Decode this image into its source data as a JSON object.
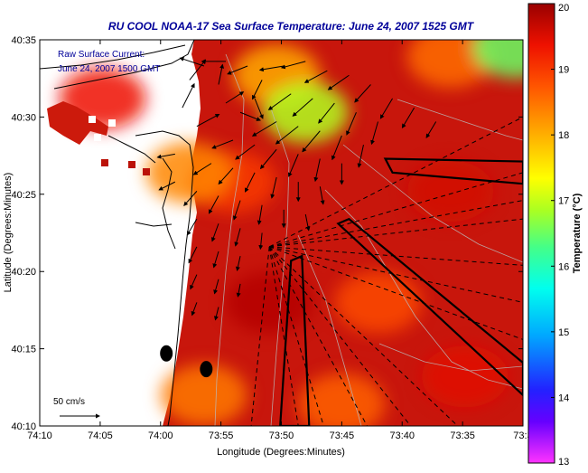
{
  "chart_data": {
    "type": "heatmap",
    "title": "RU COOL  NOAA-17  Sea Surface Temperature:  June 24, 2007 1525 GMT",
    "xlabel": "Longitude (Degrees:Minutes)",
    "ylabel": "Latitude (Degrees:Minutes)",
    "xlim": [
      -74.1667,
      -73.5
    ],
    "ylim": [
      40.1667,
      40.5833
    ],
    "x_ticks": [
      {
        "value": -74.1667,
        "label": "74:10"
      },
      {
        "value": -74.0833,
        "label": "74:05"
      },
      {
        "value": -74.0,
        "label": "74:00"
      },
      {
        "value": -73.9167,
        "label": "73:55"
      },
      {
        "value": -73.8333,
        "label": "73:50"
      },
      {
        "value": -73.75,
        "label": "73:45"
      },
      {
        "value": -73.6667,
        "label": "73:40"
      },
      {
        "value": -73.5833,
        "label": "73:35"
      },
      {
        "value": -73.5,
        "label": "73:3"
      }
    ],
    "y_ticks": [
      {
        "value": 40.1667,
        "label": "40:10"
      },
      {
        "value": 40.25,
        "label": "40:15"
      },
      {
        "value": 40.3333,
        "label": "40:20"
      },
      {
        "value": 40.4167,
        "label": "40:25"
      },
      {
        "value": 40.5,
        "label": "40:30"
      },
      {
        "value": 40.5833,
        "label": "40:35"
      }
    ],
    "colorbar": {
      "label": "Temperature (°C)",
      "range": [
        13,
        20
      ],
      "ticks": [
        13,
        14,
        15,
        16,
        17,
        18,
        19,
        20
      ],
      "colors": [
        "#ff33ff",
        "#3333ff",
        "#00ffff",
        "#66ff99",
        "#ffff00",
        "#ff9900",
        "#ff2200",
        "#990000"
      ]
    },
    "annotations": {
      "current_label_1": "Raw Surface Current:",
      "current_label_2": "June 24, 2007 1500 GMT",
      "scale_label": "50 cm/s",
      "scale_speed_cms": 50
    },
    "sst_zones": [
      {
        "lon": -74.08,
        "lat": 40.52,
        "temp": 19.4
      },
      {
        "lon": -73.84,
        "lat": 40.545,
        "temp": 18.0
      },
      {
        "lon": -73.8,
        "lat": 40.505,
        "temp": 16.9
      },
      {
        "lon": -73.6,
        "lat": 40.565,
        "temp": 18.5
      },
      {
        "lon": -73.51,
        "lat": 40.575,
        "temp": 16.5
      },
      {
        "lon": -73.9,
        "lat": 40.43,
        "temp": 19.0
      },
      {
        "lon": -73.96,
        "lat": 40.44,
        "temp": 18.3
      },
      {
        "lon": -73.6,
        "lat": 40.42,
        "temp": 19.6
      },
      {
        "lon": -73.7,
        "lat": 40.3,
        "temp": 18.8
      },
      {
        "lon": -73.85,
        "lat": 40.3,
        "temp": 19.8
      },
      {
        "lon": -73.94,
        "lat": 40.2,
        "temp": 18.4
      },
      {
        "lon": -73.75,
        "lat": 40.19,
        "temp": 18.6
      },
      {
        "lon": -73.58,
        "lat": 40.22,
        "temp": 19.5
      }
    ],
    "radial_lines": {
      "origin": {
        "lon": -73.85,
        "lat": 40.36
      },
      "ends": [
        {
          "lon": -73.5,
          "lat": 40.5
        },
        {
          "lon": -73.5,
          "lat": 40.44
        },
        {
          "lon": -73.5,
          "lat": 40.41
        },
        {
          "lon": -73.5,
          "lat": 40.39
        },
        {
          "lon": -73.5,
          "lat": 40.34
        },
        {
          "lon": -73.5,
          "lat": 40.3
        },
        {
          "lon": -73.5,
          "lat": 40.26
        },
        {
          "lon": -73.59,
          "lat": 40.1667
        },
        {
          "lon": -73.655,
          "lat": 40.1667
        },
        {
          "lon": -73.715,
          "lat": 40.1667
        },
        {
          "lon": -73.775,
          "lat": 40.1667
        },
        {
          "lon": -73.81,
          "lat": 40.1667
        },
        {
          "lon": -73.875,
          "lat": 40.1667
        }
      ]
    },
    "sampling_boxes": [
      [
        [
          -73.835,
          40.1667
        ],
        [
          -73.82,
          40.345
        ],
        [
          -73.805,
          40.35
        ],
        [
          -73.795,
          40.1667
        ]
      ],
      [
        [
          -73.755,
          40.385
        ],
        [
          -73.74,
          40.39
        ],
        [
          -73.5,
          40.235
        ],
        [
          -73.5,
          40.2
        ]
      ],
      [
        [
          -73.69,
          40.455
        ],
        [
          -73.68,
          40.44
        ],
        [
          -73.5,
          40.428
        ],
        [
          -73.5,
          40.452
        ]
      ]
    ],
    "markers": [
      {
        "lon": -73.992,
        "lat": 40.245
      },
      {
        "lon": -73.937,
        "lat": 40.228
      }
    ],
    "vectors": [
      {
        "lon": -73.94,
        "lat": 40.555,
        "u": -30,
        "v": 10
      },
      {
        "lon": -73.91,
        "lat": 40.56,
        "u": -30,
        "v": 0
      },
      {
        "lon": -73.88,
        "lat": 40.555,
        "u": -25,
        "v": -10
      },
      {
        "lon": -73.86,
        "lat": 40.54,
        "u": -12,
        "v": -24
      },
      {
        "lon": -73.87,
        "lat": 40.52,
        "u": 10,
        "v": -25
      },
      {
        "lon": -73.89,
        "lat": 40.505,
        "u": 25,
        "v": -10
      },
      {
        "lon": -73.91,
        "lat": 40.515,
        "u": 22,
        "v": 14
      },
      {
        "lon": -73.92,
        "lat": 40.535,
        "u": 5,
        "v": 25
      },
      {
        "lon": -73.96,
        "lat": 40.54,
        "u": 20,
        "v": 25
      },
      {
        "lon": -73.97,
        "lat": 40.51,
        "u": 15,
        "v": 30
      },
      {
        "lon": -73.95,
        "lat": 40.49,
        "u": 28,
        "v": 15
      },
      {
        "lon": -73.83,
        "lat": 40.555,
        "u": -30,
        "v": -5
      },
      {
        "lon": -73.8,
        "lat": 40.56,
        "u": -30,
        "v": -8
      },
      {
        "lon": -73.77,
        "lat": 40.55,
        "u": -28,
        "v": -15
      },
      {
        "lon": -73.74,
        "lat": 40.545,
        "u": -26,
        "v": -18
      },
      {
        "lon": -73.71,
        "lat": 40.535,
        "u": -20,
        "v": -22
      },
      {
        "lon": -73.68,
        "lat": 40.52,
        "u": -15,
        "v": -25
      },
      {
        "lon": -73.82,
        "lat": 40.525,
        "u": -28,
        "v": -20
      },
      {
        "lon": -73.79,
        "lat": 40.52,
        "u": -25,
        "v": -22
      },
      {
        "lon": -73.76,
        "lat": 40.515,
        "u": -20,
        "v": -25
      },
      {
        "lon": -73.73,
        "lat": 40.505,
        "u": -12,
        "v": -28
      },
      {
        "lon": -73.7,
        "lat": 40.495,
        "u": -8,
        "v": -28
      },
      {
        "lon": -73.84,
        "lat": 40.495,
        "u": -30,
        "v": -18
      },
      {
        "lon": -73.81,
        "lat": 40.49,
        "u": -28,
        "v": -22
      },
      {
        "lon": -73.78,
        "lat": 40.485,
        "u": -22,
        "v": -26
      },
      {
        "lon": -73.75,
        "lat": 40.48,
        "u": -12,
        "v": -30
      },
      {
        "lon": -73.72,
        "lat": 40.47,
        "u": -6,
        "v": -28
      },
      {
        "lon": -73.9,
        "lat": 40.475,
        "u": -26,
        "v": -10
      },
      {
        "lon": -73.87,
        "lat": 40.47,
        "u": -24,
        "v": -18
      },
      {
        "lon": -73.84,
        "lat": 40.465,
        "u": -20,
        "v": -24
      },
      {
        "lon": -73.81,
        "lat": 40.46,
        "u": -12,
        "v": -28
      },
      {
        "lon": -73.78,
        "lat": 40.455,
        "u": -6,
        "v": -28
      },
      {
        "lon": -73.75,
        "lat": 40.45,
        "u": 0,
        "v": -26
      },
      {
        "lon": -73.93,
        "lat": 40.45,
        "u": -22,
        "v": -14
      },
      {
        "lon": -73.9,
        "lat": 40.445,
        "u": -18,
        "v": -20
      },
      {
        "lon": -73.87,
        "lat": 40.44,
        "u": -12,
        "v": -24
      },
      {
        "lon": -73.84,
        "lat": 40.435,
        "u": -6,
        "v": -26
      },
      {
        "lon": -73.81,
        "lat": 40.43,
        "u": 0,
        "v": -24
      },
      {
        "lon": -73.78,
        "lat": 40.425,
        "u": 4,
        "v": -22
      },
      {
        "lon": -73.95,
        "lat": 40.42,
        "u": -16,
        "v": -18
      },
      {
        "lon": -73.92,
        "lat": 40.415,
        "u": -12,
        "v": -22
      },
      {
        "lon": -73.89,
        "lat": 40.41,
        "u": -8,
        "v": -24
      },
      {
        "lon": -73.86,
        "lat": 40.405,
        "u": -4,
        "v": -24
      },
      {
        "lon": -73.83,
        "lat": 40.4,
        "u": 0,
        "v": -22
      },
      {
        "lon": -73.8,
        "lat": 40.395,
        "u": 4,
        "v": -20
      },
      {
        "lon": -73.95,
        "lat": 40.39,
        "u": -12,
        "v": -20
      },
      {
        "lon": -73.92,
        "lat": 40.385,
        "u": -8,
        "v": -22
      },
      {
        "lon": -73.89,
        "lat": 40.38,
        "u": -6,
        "v": -22
      },
      {
        "lon": -73.86,
        "lat": 40.375,
        "u": -2,
        "v": -20
      },
      {
        "lon": -73.95,
        "lat": 40.36,
        "u": -10,
        "v": -20
      },
      {
        "lon": -73.92,
        "lat": 40.355,
        "u": -6,
        "v": -20
      },
      {
        "lon": -73.89,
        "lat": 40.35,
        "u": -4,
        "v": -18
      },
      {
        "lon": -73.95,
        "lat": 40.33,
        "u": -8,
        "v": -18
      },
      {
        "lon": -73.92,
        "lat": 40.325,
        "u": -5,
        "v": -18
      },
      {
        "lon": -73.89,
        "lat": 40.32,
        "u": -3,
        "v": -16
      },
      {
        "lon": -73.95,
        "lat": 40.3,
        "u": -6,
        "v": -16
      },
      {
        "lon": -73.92,
        "lat": 40.295,
        "u": -4,
        "v": -16
      },
      {
        "lon": -73.65,
        "lat": 40.51,
        "u": -15,
        "v": -25
      },
      {
        "lon": -73.62,
        "lat": 40.495,
        "u": -12,
        "v": -20
      },
      {
        "lon": -73.98,
        "lat": 40.46,
        "u": -22,
        "v": -4
      },
      {
        "lon": -73.98,
        "lat": 40.43,
        "u": -20,
        "v": -10
      }
    ]
  }
}
